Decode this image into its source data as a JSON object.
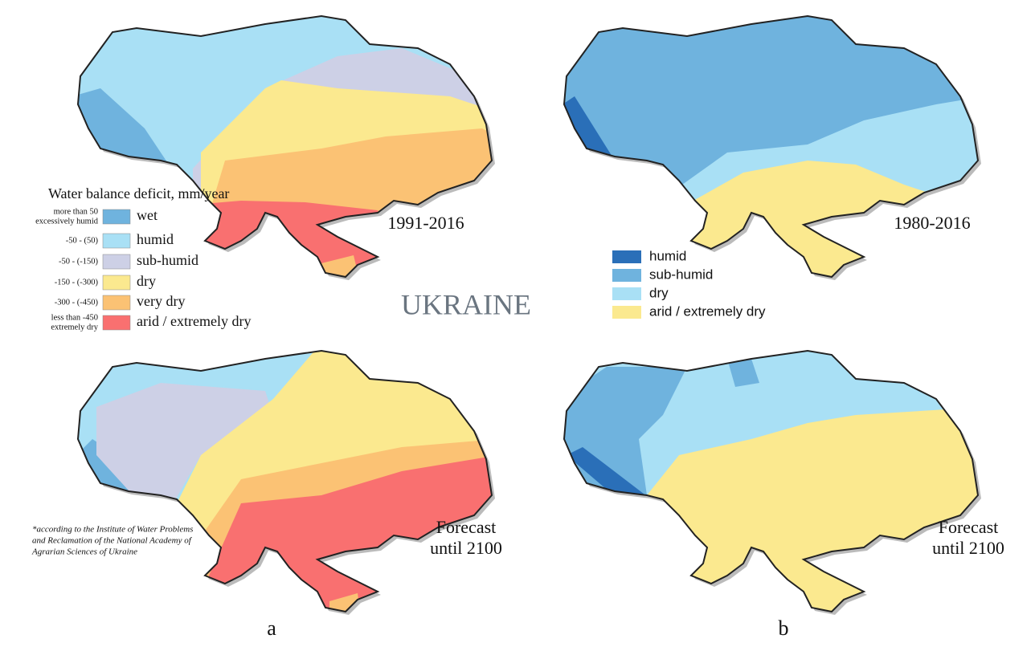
{
  "title": "UKRAINE",
  "legend_left": {
    "title": "Water balance deficit, mm/year",
    "items": [
      {
        "range": [
          "more than 50",
          "excessively humid"
        ],
        "name": "wet",
        "color": "#6fb3de"
      },
      {
        "range": [
          "-50 - (50)"
        ],
        "name": "humid",
        "color": "#a9e0f5"
      },
      {
        "range": [
          "-50 - (-150)"
        ],
        "name": "sub-humid",
        "color": "#cdd0e6"
      },
      {
        "range": [
          "-150 - (-300)"
        ],
        "name": "dry",
        "color": "#fbe98f"
      },
      {
        "range": [
          "-300 - (-450)"
        ],
        "name": "very dry",
        "color": "#fbc274"
      },
      {
        "range": [
          "less than -450",
          "extremely dry"
        ],
        "name": "arid / extremely dry",
        "color": "#f97070"
      }
    ]
  },
  "legend_right": {
    "items": [
      {
        "name": "humid",
        "color": "#2a6fb8"
      },
      {
        "name": "sub-humid",
        "color": "#6fb3de"
      },
      {
        "name": "dry",
        "color": "#a9e0f5"
      },
      {
        "name": "arid / extremely dry",
        "color": "#fbe98f"
      }
    ]
  },
  "panels": [
    {
      "label": [
        "1991-2016"
      ]
    },
    {
      "label": [
        "1980-2016"
      ]
    },
    {
      "label": [
        "Forecast",
        "until 2100"
      ]
    },
    {
      "label": [
        "Forecast",
        "until 2100"
      ]
    }
  ],
  "footnote": [
    "*according to the Institute of Water Problems",
    "and Reclamation of the National Academy of",
    "Agrarian Sciences of Ukraine"
  ],
  "column_labels": [
    "a",
    "b"
  ]
}
